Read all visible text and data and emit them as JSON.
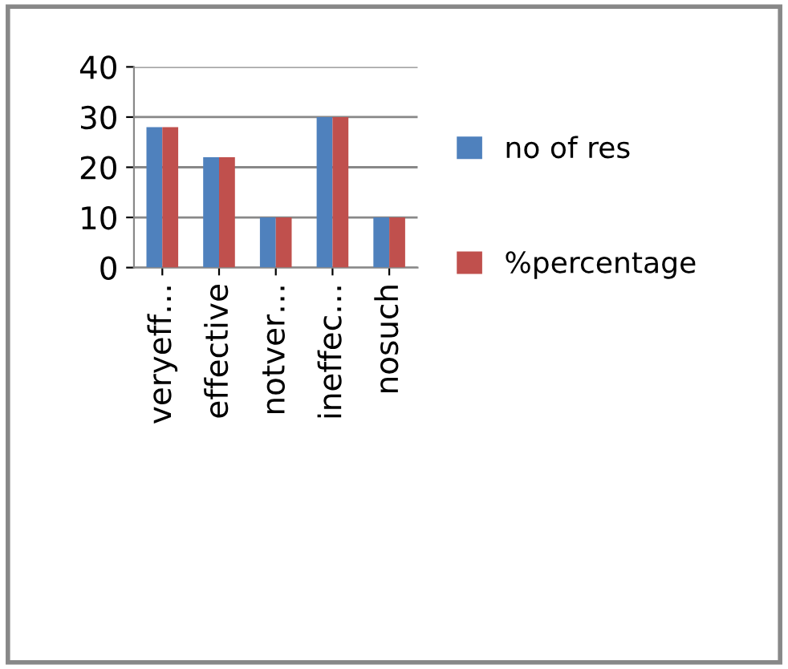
{
  "chart_data": {
    "type": "bar",
    "categories": [
      "veryeff…",
      "effective",
      "notver…",
      "ineffec…",
      "nosuch"
    ],
    "series": [
      {
        "name": "no of res",
        "color": "#4f81bd",
        "values": [
          28,
          22,
          10,
          30,
          10
        ]
      },
      {
        "name": "%percentage",
        "color": "#c0504d",
        "values": [
          28,
          22,
          10,
          30,
          10
        ]
      }
    ],
    "ylim": [
      0,
      40
    ],
    "yticks": [
      0,
      10,
      20,
      30,
      40
    ],
    "grid": "y",
    "legend": "right"
  }
}
